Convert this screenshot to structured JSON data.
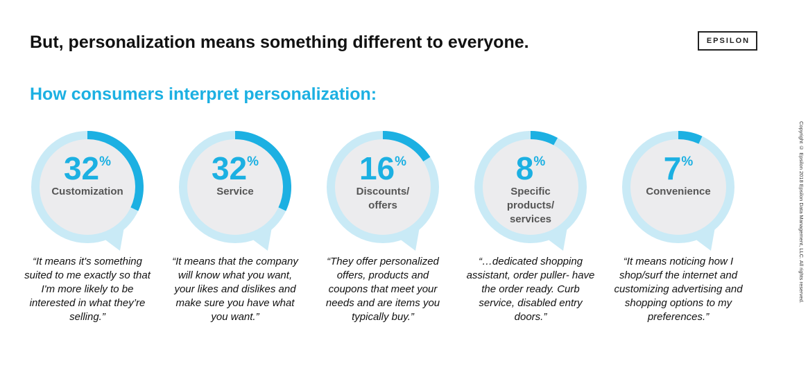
{
  "header": {
    "title": "But, personalization means something different to everyone.",
    "logo_text": "EPSILON"
  },
  "section": {
    "subtitle": "How consumers interpret personalization:"
  },
  "copyright": "Copyright © Epsilon 2018 Epsilon Data Management, LLC. All rights reserved.",
  "colors": {
    "accent": "#1cb0e2",
    "ring_light": "#c9eaf6",
    "inner_fill": "#ececee",
    "label_gray": "#555555"
  },
  "chart_data": {
    "type": "pie",
    "title": "How consumers interpret personalization:",
    "unit": "%",
    "categories": [
      "Customization",
      "Service",
      "Discounts/ offers",
      "Specific products/ services",
      "Convenience"
    ],
    "values": [
      32,
      32,
      16,
      8,
      7
    ],
    "items": [
      {
        "value": 32,
        "display": "32",
        "symbol": "%",
        "label_lines": [
          "Customization"
        ],
        "quote": "“It means it's something suited to me exactly so that I'm more likely to be interested in what they’re selling.”"
      },
      {
        "value": 32,
        "display": "32",
        "symbol": "%",
        "label_lines": [
          "Service"
        ],
        "quote": "“It means that the company will know what you want, your likes and dislikes and make sure you have what you want.”"
      },
      {
        "value": 16,
        "display": "16",
        "symbol": "%",
        "label_lines": [
          "Discounts/",
          "offers"
        ],
        "quote": "“They offer personalized offers, products and coupons that meet your needs and are items you typically buy.”"
      },
      {
        "value": 8,
        "display": "8",
        "symbol": "%",
        "label_lines": [
          "Specific",
          "products/",
          "services"
        ],
        "quote": "“…dedicated shopping assistant, order puller- have the order ready. Curb service, disabled entry doors.”"
      },
      {
        "value": 7,
        "display": "7",
        "symbol": "%",
        "label_lines": [
          "Convenience"
        ],
        "quote": "“It means noticing how I shop/surf the internet and customizing advertising and shopping options to my preferences.”"
      }
    ]
  }
}
